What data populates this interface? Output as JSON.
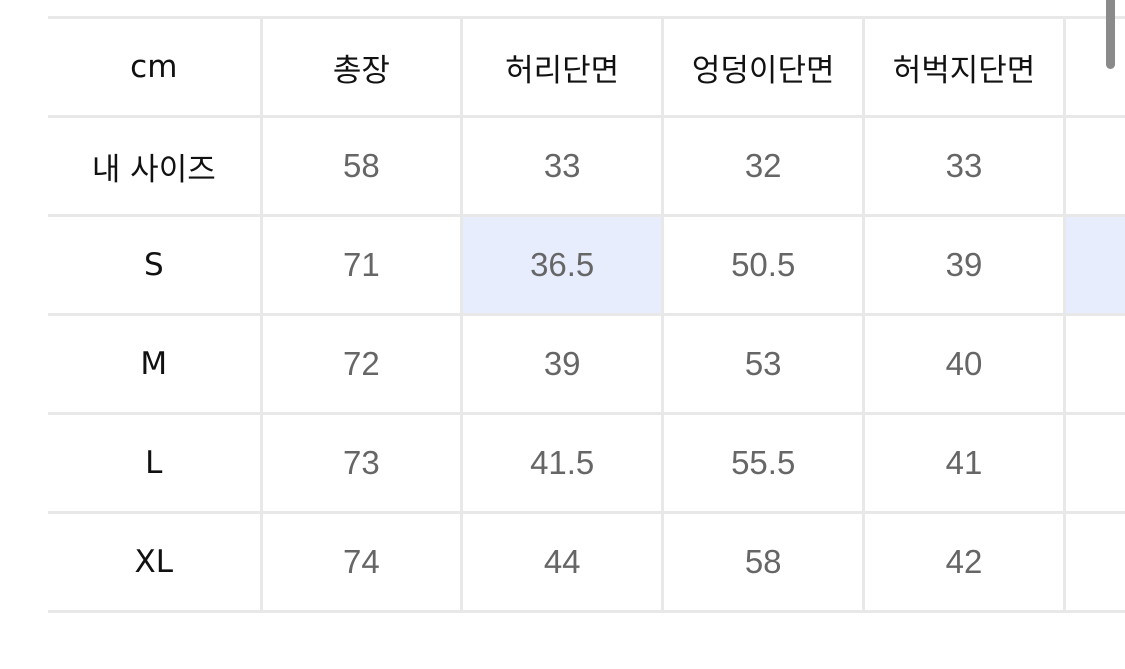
{
  "columns": [
    "cm",
    "총장",
    "허리단면",
    "엉덩이단면",
    "허벅지단면",
    ""
  ],
  "rows": [
    {
      "label": "내 사이즈",
      "values": [
        "58",
        "33",
        "32",
        "33",
        ""
      ]
    },
    {
      "label": "S",
      "values": [
        "71",
        "36.5",
        "50.5",
        "39",
        ""
      ],
      "highlighted_columns": [
        2,
        5
      ]
    },
    {
      "label": "M",
      "values": [
        "72",
        "39",
        "53",
        "40",
        ""
      ]
    },
    {
      "label": "L",
      "values": [
        "73",
        "41.5",
        "55.5",
        "41",
        ""
      ]
    },
    {
      "label": "XL",
      "values": [
        "74",
        "44",
        "58",
        "42",
        ""
      ]
    }
  ],
  "colors": {
    "highlight": "#e8edfd",
    "border": "#e8e8e8",
    "value_text": "#666666"
  }
}
